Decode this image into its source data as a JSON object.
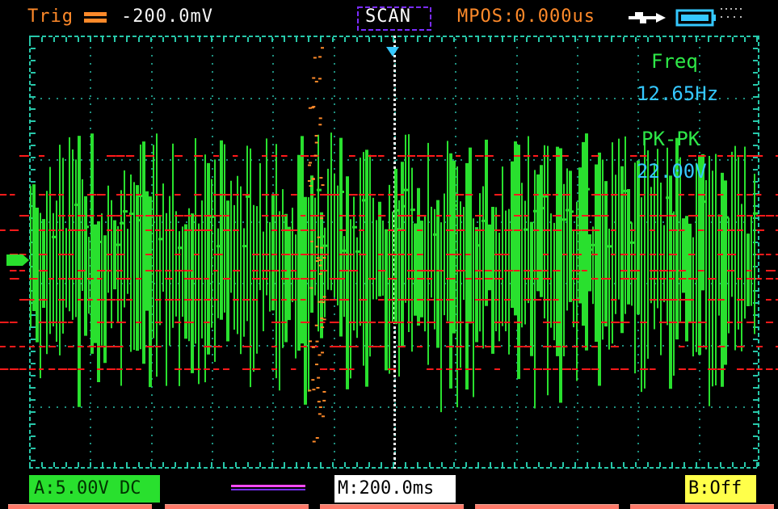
{
  "status_bar": {
    "trigger_status": "Trig",
    "trigger_level": "-200.0mV",
    "acquire_mode": "SCAN",
    "horizontal_position": "MPOS:0.000us",
    "icons": {
      "trigger_edge": "trigger-edge-icon",
      "usb": "usb-icon",
      "battery": "battery-icon"
    }
  },
  "measurements": {
    "freq_label": "Freq",
    "freq_value": "12.65Hz",
    "pkpk_label": "PK-PK",
    "pkpk_value": "22.00V"
  },
  "bottom_bar": {
    "channel_a": "A:5.00V DC",
    "timebase": "M:200.0ms",
    "channel_b": "B:Off"
  },
  "colors": {
    "background": "#000000",
    "grid": "#27c7a9",
    "channel_a": "#29e02e",
    "channel_a_text": "#003300",
    "measurement_value": "#35c8ff",
    "trigger": "#ff8a2a",
    "overlay_red": "#ff1a1a",
    "channel_b": "#ffff4a",
    "softkey": "#ff7a6a"
  }
}
